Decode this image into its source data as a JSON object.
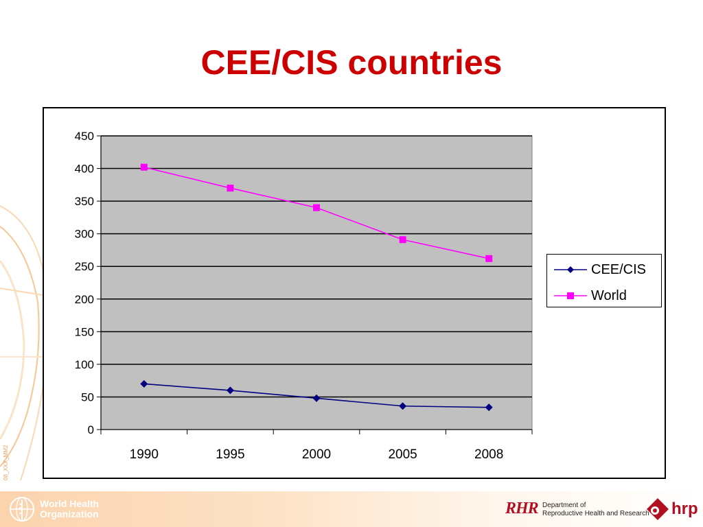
{
  "slide": {
    "title": "CEE/CIS countries",
    "side_code": "08_XXX_MM2"
  },
  "footer": {
    "who_line1": "World Health",
    "who_line2": "Organization",
    "rhr_logo": "RHR",
    "dept_line1": "Department of",
    "dept_line2": "Reproductive Health and Research",
    "hrp_logo": "hrp"
  },
  "colors": {
    "title": "#cc0000",
    "plot_bg": "#c0c0c0",
    "cee_cis": "#000080",
    "world": "#ff00ff"
  },
  "chart_data": {
    "type": "line",
    "title": "",
    "xlabel": "",
    "ylabel": "",
    "categories": [
      "1990",
      "1995",
      "2000",
      "2005",
      "2008"
    ],
    "ylim": [
      0,
      450
    ],
    "yticks": [
      0,
      50,
      100,
      150,
      200,
      250,
      300,
      350,
      400,
      450
    ],
    "grid": true,
    "legend_position": "right",
    "series": [
      {
        "name": "CEE/CIS",
        "values": [
          70,
          60,
          48,
          36,
          34
        ],
        "color": "#000080",
        "marker": "diamond"
      },
      {
        "name": "World",
        "values": [
          402,
          370,
          340,
          291,
          262
        ],
        "color": "#ff00ff",
        "marker": "square"
      }
    ]
  }
}
